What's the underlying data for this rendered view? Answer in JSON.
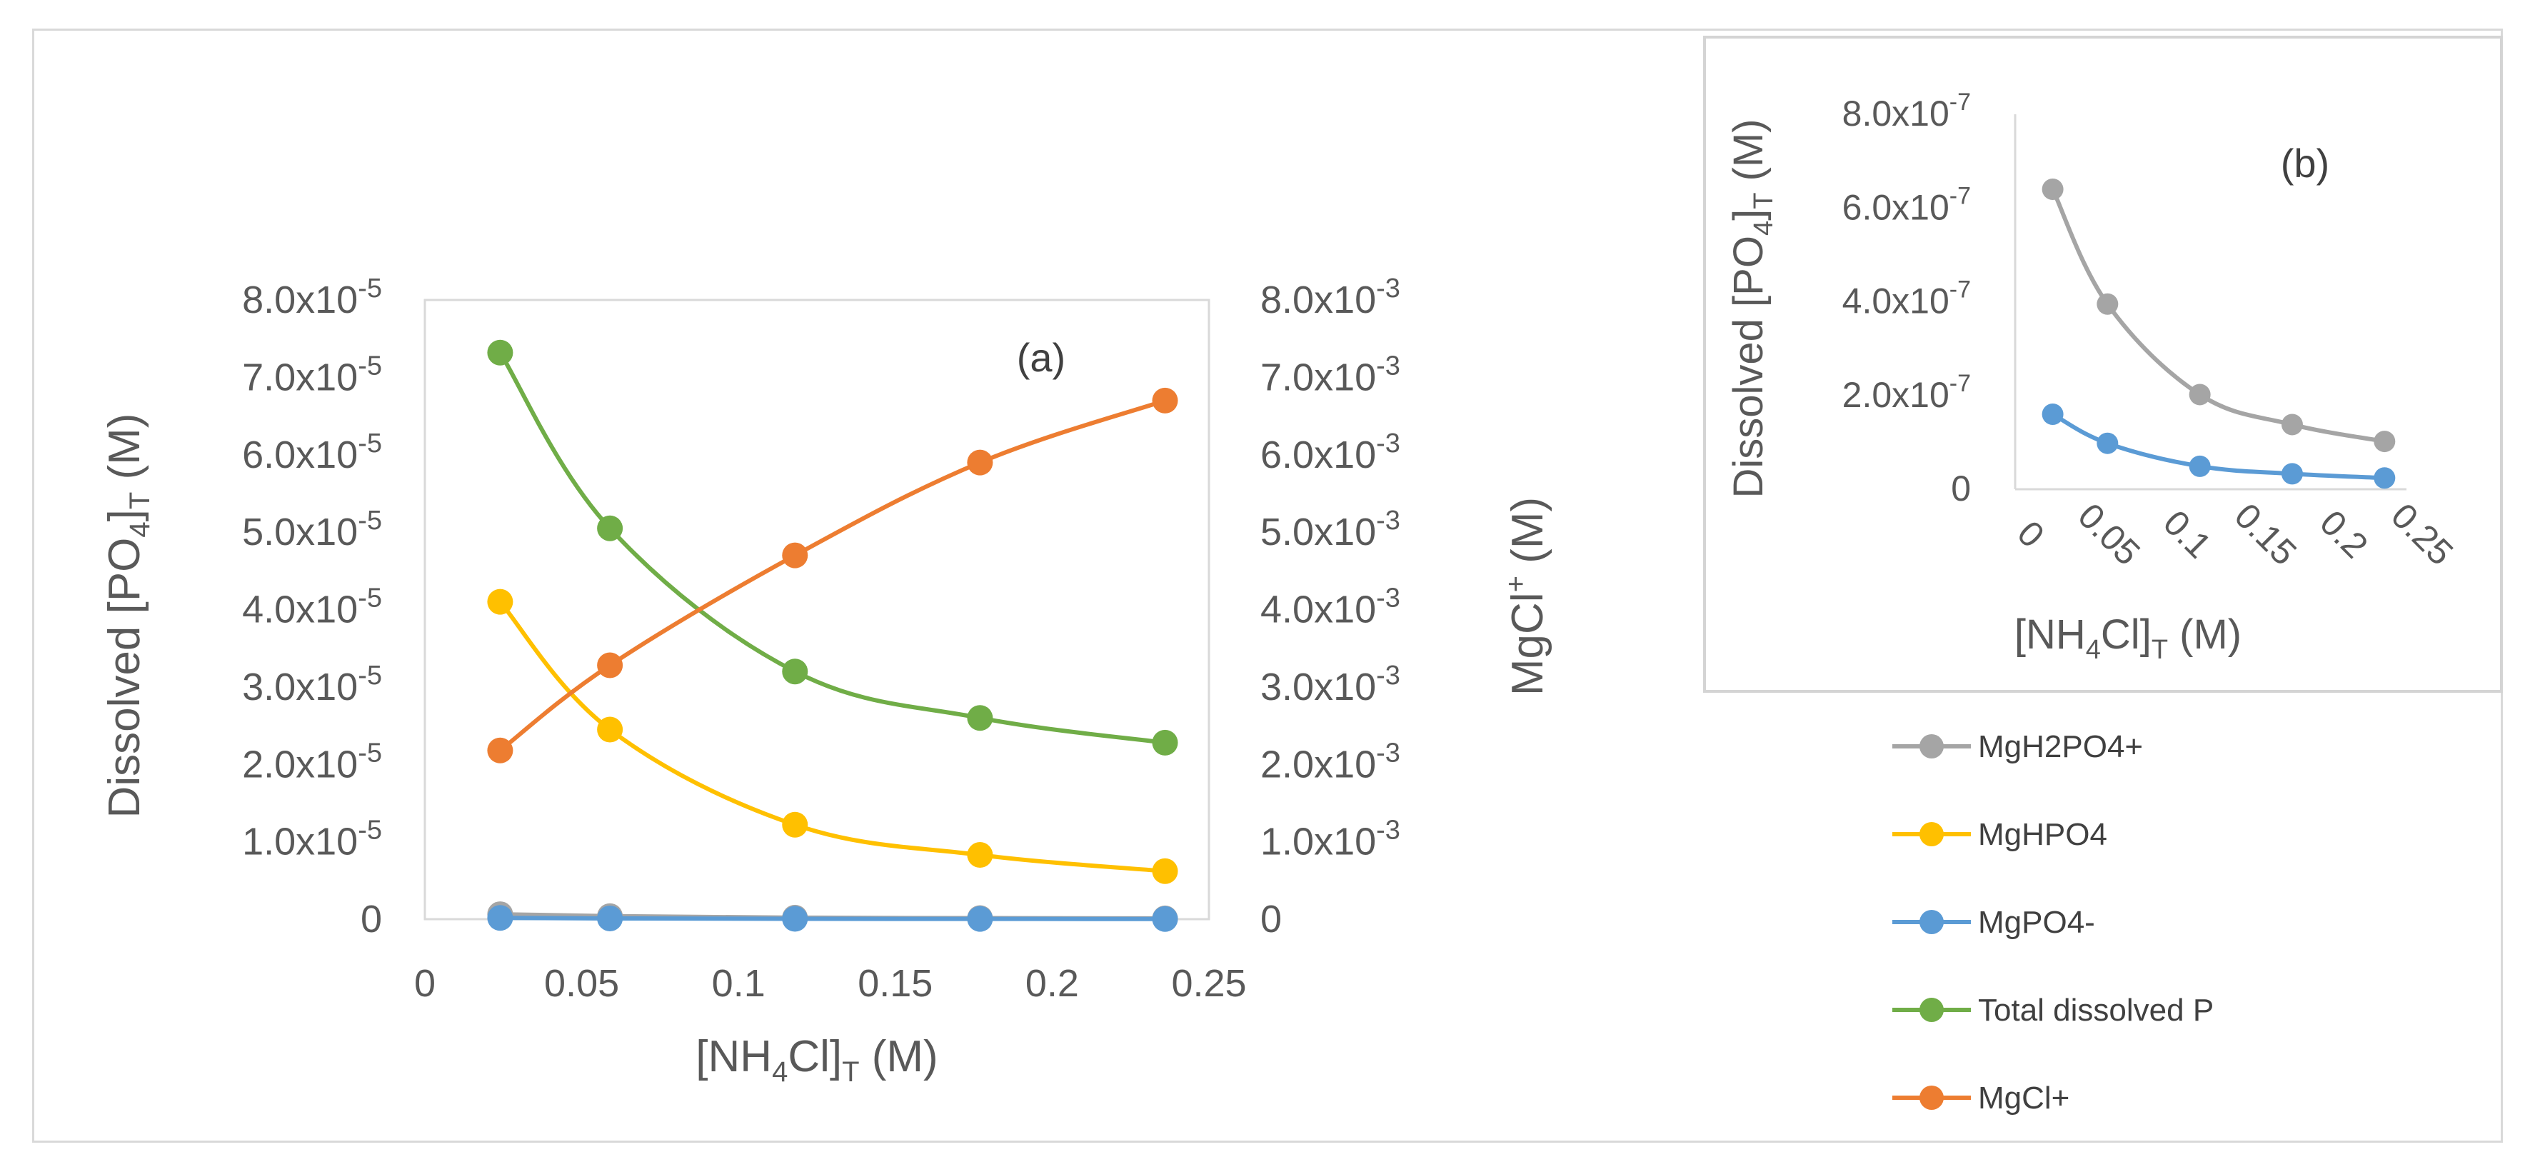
{
  "chart_data": [
    {
      "id": "a",
      "type": "line",
      "panel_label": "(a)",
      "xlabel": {
        "main": "[NH",
        "sub1": "4",
        "mid": "Cl]",
        "sub2": "T",
        "tail": " (M)"
      },
      "ylabel": {
        "main": "Dissolved [PO",
        "sub1": "4",
        "mid": "]",
        "sub2": "T",
        "tail": " (M)"
      },
      "y2label": {
        "main": "MgCl",
        "sup": "+",
        "tail": " (M)"
      },
      "xlim": [
        0,
        0.25
      ],
      "ylim": [
        0,
        8e-05
      ],
      "y2lim": [
        0,
        0.008
      ],
      "xticks": [
        "0",
        "0.05",
        "0.1",
        "0.15",
        "0.2",
        "0.25"
      ],
      "xtick_values": [
        0,
        0.05,
        0.1,
        0.15,
        0.2,
        0.25
      ],
      "yticks": [
        {
          "v": 0,
          "base": "0",
          "exp": ""
        },
        {
          "v": 1e-05,
          "base": "1.0x10",
          "exp": "-5"
        },
        {
          "v": 2e-05,
          "base": "2.0x10",
          "exp": "-5"
        },
        {
          "v": 3e-05,
          "base": "3.0x10",
          "exp": "-5"
        },
        {
          "v": 4e-05,
          "base": "4.0x10",
          "exp": "-5"
        },
        {
          "v": 5e-05,
          "base": "5.0x10",
          "exp": "-5"
        },
        {
          "v": 6e-05,
          "base": "6.0x10",
          "exp": "-5"
        },
        {
          "v": 7e-05,
          "base": "7.0x10",
          "exp": "-5"
        },
        {
          "v": 8e-05,
          "base": "8.0x10",
          "exp": "-5"
        }
      ],
      "y2ticks": [
        {
          "v": 0,
          "base": "0",
          "exp": ""
        },
        {
          "v": 0.001,
          "base": "1.0x10",
          "exp": "-3"
        },
        {
          "v": 0.002,
          "base": "2.0x10",
          "exp": "-3"
        },
        {
          "v": 0.003,
          "base": "3.0x10",
          "exp": "-3"
        },
        {
          "v": 0.004,
          "base": "4.0x10",
          "exp": "-3"
        },
        {
          "v": 0.005,
          "base": "5.0x10",
          "exp": "-3"
        },
        {
          "v": 0.006,
          "base": "6.0x10",
          "exp": "-3"
        },
        {
          "v": 0.007,
          "base": "7.0x10",
          "exp": "-3"
        },
        {
          "v": 0.008,
          "base": "8.0x10",
          "exp": "-3"
        }
      ],
      "x": [
        0.024,
        0.059,
        0.118,
        0.177,
        0.236
      ],
      "series": [
        {
          "name": "MgH2PO4+",
          "axis": "left",
          "color": "#a5a5a5",
          "values": [
            6.4e-07,
            3.9e-07,
            2e-07,
            1.4e-07,
            1e-07
          ]
        },
        {
          "name": "MgHPO4",
          "axis": "left",
          "color": "#ffc000",
          "values": [
            4.1e-05,
            2.45e-05,
            1.22e-05,
            8.3e-06,
            6.2e-06
          ]
        },
        {
          "name": "MgPO4-",
          "axis": "left",
          "color": "#5b9bd5",
          "values": [
            1.6e-07,
            9.8e-08,
            4.9e-08,
            3.3e-08,
            2.4e-08
          ]
        },
        {
          "name": "Total dissolved P",
          "axis": "left",
          "color": "#70ad47",
          "values": [
            7.32e-05,
            5.05e-05,
            3.2e-05,
            2.6e-05,
            2.28e-05
          ]
        },
        {
          "name": "MgCl+",
          "axis": "right",
          "color": "#ed7d31",
          "values": [
            0.00218,
            0.00328,
            0.0047,
            0.0059,
            0.0067
          ]
        }
      ]
    },
    {
      "id": "b",
      "type": "line",
      "panel_label": "(b)",
      "xlabel": {
        "main": "[NH",
        "sub1": "4",
        "mid": "Cl]",
        "sub2": "T",
        "tail": " (M)"
      },
      "ylabel": {
        "main": "Dissolved [PO",
        "sub1": "4",
        "mid": "]",
        "sub2": "T",
        "tail": " (M)"
      },
      "xlim": [
        0,
        0.25
      ],
      "ylim": [
        0,
        8e-07
      ],
      "xticks": [
        "0",
        "0.05",
        "0.1",
        "0.15",
        "0.2",
        "0.25"
      ],
      "xtick_values": [
        0,
        0.05,
        0.1,
        0.15,
        0.2,
        0.25
      ],
      "yticks": [
        {
          "v": 0,
          "base": "0",
          "exp": ""
        },
        {
          "v": 2e-07,
          "base": "2.0x10",
          "exp": "-7"
        },
        {
          "v": 4e-07,
          "base": "4.0x10",
          "exp": "-7"
        },
        {
          "v": 6e-07,
          "base": "6.0x10",
          "exp": "-7"
        },
        {
          "v": 8e-07,
          "base": "8.0x10",
          "exp": "-7"
        }
      ],
      "x": [
        0.024,
        0.059,
        0.118,
        0.177,
        0.236
      ],
      "series": [
        {
          "name": "MgH2PO4+",
          "color": "#a5a5a5",
          "values": [
            6.4e-07,
            3.95e-07,
            2.02e-07,
            1.38e-07,
            1.02e-07
          ]
        },
        {
          "name": "MgPO4-",
          "color": "#5b9bd5",
          "values": [
            1.6e-07,
            9.8e-08,
            4.9e-08,
            3.3e-08,
            2.4e-08
          ]
        }
      ]
    }
  ],
  "legend": [
    {
      "label": "MgH2PO4+",
      "color": "#a5a5a5"
    },
    {
      "label": "MgHPO4",
      "color": "#ffc000"
    },
    {
      "label": "MgPO4-",
      "color": "#5b9bd5"
    },
    {
      "label": "Total dissolved P",
      "color": "#70ad47"
    },
    {
      "label": "MgCl+",
      "color": "#ed7d31"
    }
  ]
}
